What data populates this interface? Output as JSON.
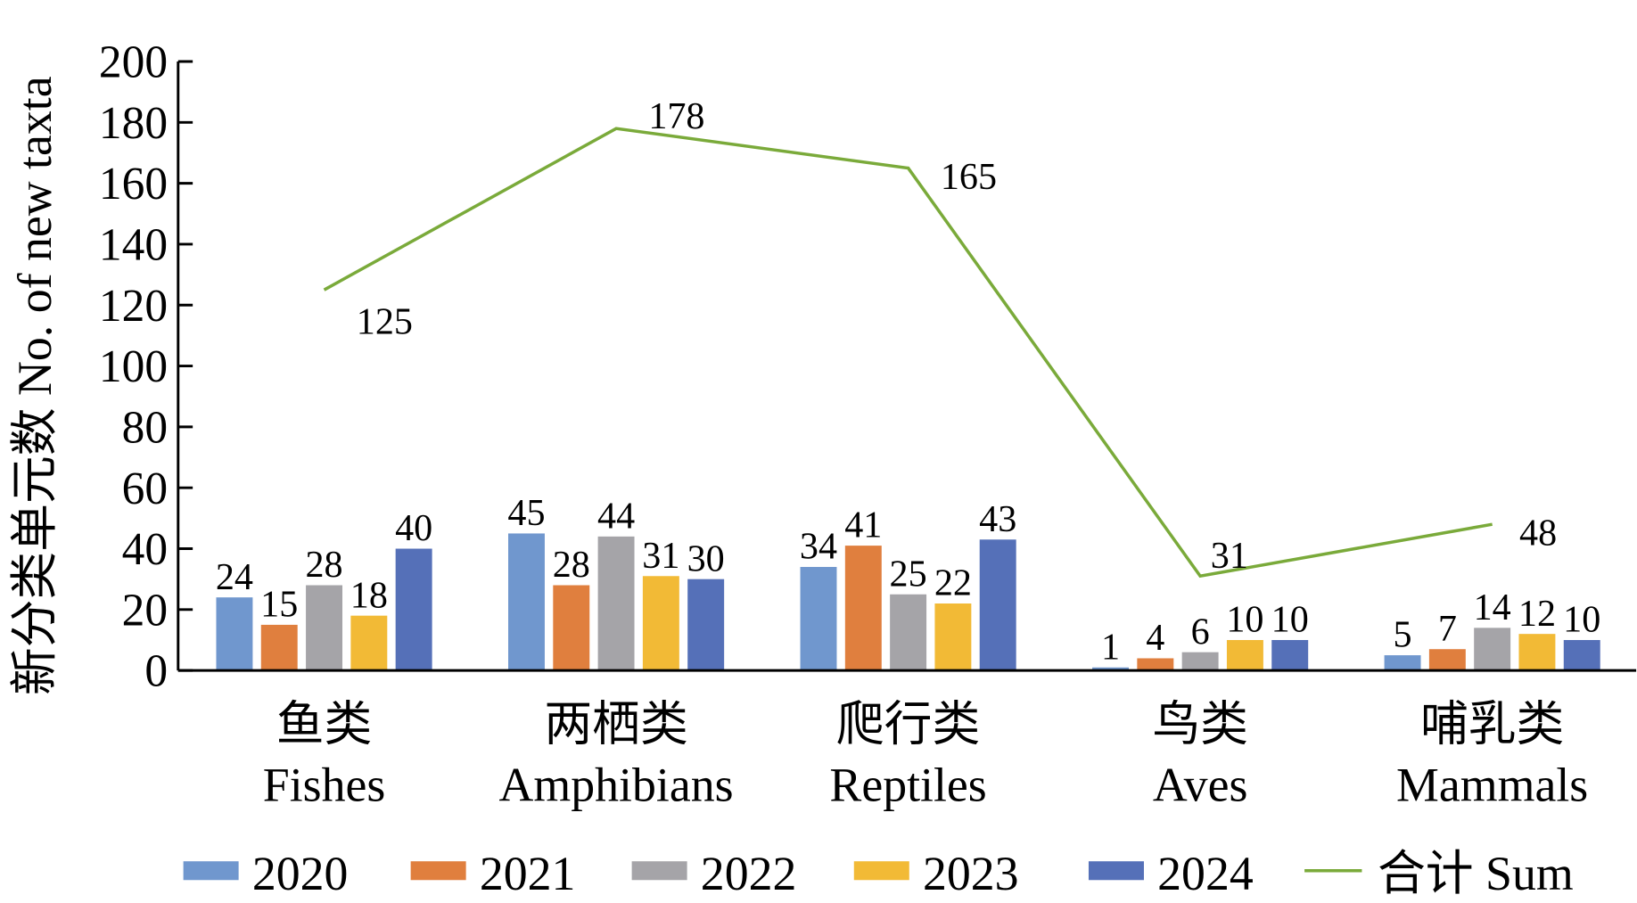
{
  "chart_data": {
    "type": "bar",
    "title": "",
    "xlabel": "",
    "ylabel": "新分类单元数 No. of new taxta",
    "ylim": [
      0,
      200
    ],
    "yticks": [
      "0",
      "20",
      "40",
      "60",
      "80",
      "100",
      "120",
      "140",
      "160",
      "180",
      "200"
    ],
    "grid": false,
    "legend_position": "bottom",
    "categories": [
      {
        "zh": "鱼类",
        "en": "Fishes"
      },
      {
        "zh": "两栖类",
        "en": "Amphibians"
      },
      {
        "zh": "爬行类",
        "en": "Reptiles"
      },
      {
        "zh": "鸟类",
        "en": "Aves"
      },
      {
        "zh": "哺乳类",
        "en": "Mammals"
      }
    ],
    "series": [
      {
        "name": "2020",
        "type": "bar",
        "color": "#7097CE",
        "values": [
          24,
          45,
          34,
          1,
          5
        ]
      },
      {
        "name": "2021",
        "type": "bar",
        "color": "#E07F3E",
        "values": [
          15,
          28,
          41,
          4,
          7
        ]
      },
      {
        "name": "2022",
        "type": "bar",
        "color": "#A5A4A8",
        "values": [
          28,
          44,
          25,
          6,
          14
        ]
      },
      {
        "name": "2023",
        "type": "bar",
        "color": "#F2BA36",
        "values": [
          18,
          31,
          22,
          10,
          12
        ]
      },
      {
        "name": "2024",
        "type": "bar",
        "color": "#5570B8",
        "values": [
          40,
          30,
          43,
          10,
          10
        ]
      },
      {
        "name": "合计 Sum",
        "type": "line",
        "color": "#7AAA3A",
        "values": [
          125,
          178,
          165,
          31,
          48
        ]
      }
    ]
  }
}
